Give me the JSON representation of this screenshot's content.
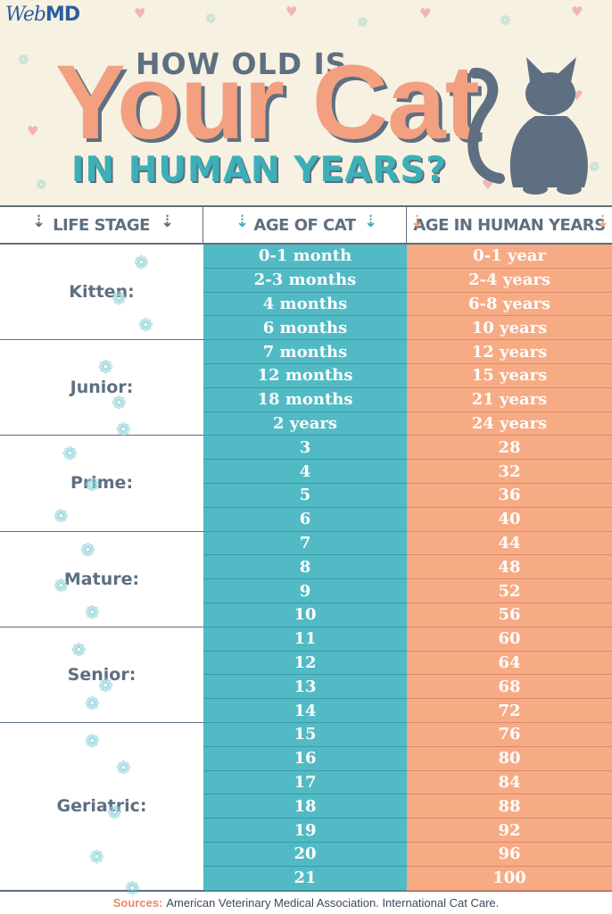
{
  "brand": {
    "logo_web": "Web",
    "logo_md": "MD"
  },
  "title": {
    "line1": "HOW OLD IS",
    "line2": "Your Cat",
    "line3": "IN HUMAN YEARS?"
  },
  "columns": {
    "life_stage": "LIFE STAGE",
    "cat_age": "AGE OF CAT",
    "human_age": "AGE IN HUMAN YEARS"
  },
  "colors": {
    "teal": "#52bac5",
    "salmon": "#f6ab85",
    "slate": "#5e6f81",
    "cream": "#f7f1e1"
  },
  "stages": [
    {
      "label": "Kitten:",
      "rows": [
        {
          "cat": "0-1 month",
          "human": "0-1 year"
        },
        {
          "cat": "2-3 months",
          "human": "2-4 years"
        },
        {
          "cat": "4 months",
          "human": "6-8 years"
        },
        {
          "cat": "6 months",
          "human": "10 years"
        }
      ]
    },
    {
      "label": "Junior:",
      "rows": [
        {
          "cat": "7 months",
          "human": "12 years"
        },
        {
          "cat": "12 months",
          "human": "15 years"
        },
        {
          "cat": "18 months",
          "human": "21 years"
        },
        {
          "cat": "2 years",
          "human": "24 years"
        }
      ]
    },
    {
      "label": "Prime:",
      "rows": [
        {
          "cat": "3",
          "human": "28"
        },
        {
          "cat": "4",
          "human": "32"
        },
        {
          "cat": "5",
          "human": "36"
        },
        {
          "cat": "6",
          "human": "40"
        }
      ]
    },
    {
      "label": "Mature:",
      "rows": [
        {
          "cat": "7",
          "human": "44"
        },
        {
          "cat": "8",
          "human": "48"
        },
        {
          "cat": "9",
          "human": "52"
        },
        {
          "cat": "10",
          "human": "56"
        }
      ]
    },
    {
      "label": "Senior:",
      "rows": [
        {
          "cat": "11",
          "human": "60"
        },
        {
          "cat": "12",
          "human": "64"
        },
        {
          "cat": "13",
          "human": "68"
        },
        {
          "cat": "14",
          "human": "72"
        }
      ]
    },
    {
      "label": "Geriatric:",
      "rows": [
        {
          "cat": "15",
          "human": "76"
        },
        {
          "cat": "16",
          "human": "80"
        },
        {
          "cat": "17",
          "human": "84"
        },
        {
          "cat": "18",
          "human": "88"
        },
        {
          "cat": "19",
          "human": "92"
        },
        {
          "cat": "20",
          "human": "96"
        },
        {
          "cat": "21",
          "human": "100"
        }
      ]
    }
  ],
  "footer": {
    "sources_label": "Sources:",
    "sources_text": "American Veterinary Medical Association. International Cat Care."
  },
  "icons": {
    "paw": "paw-print-icon",
    "arrow_down": "arrow-down-icon",
    "cat": "cat-silhouette-icon"
  }
}
